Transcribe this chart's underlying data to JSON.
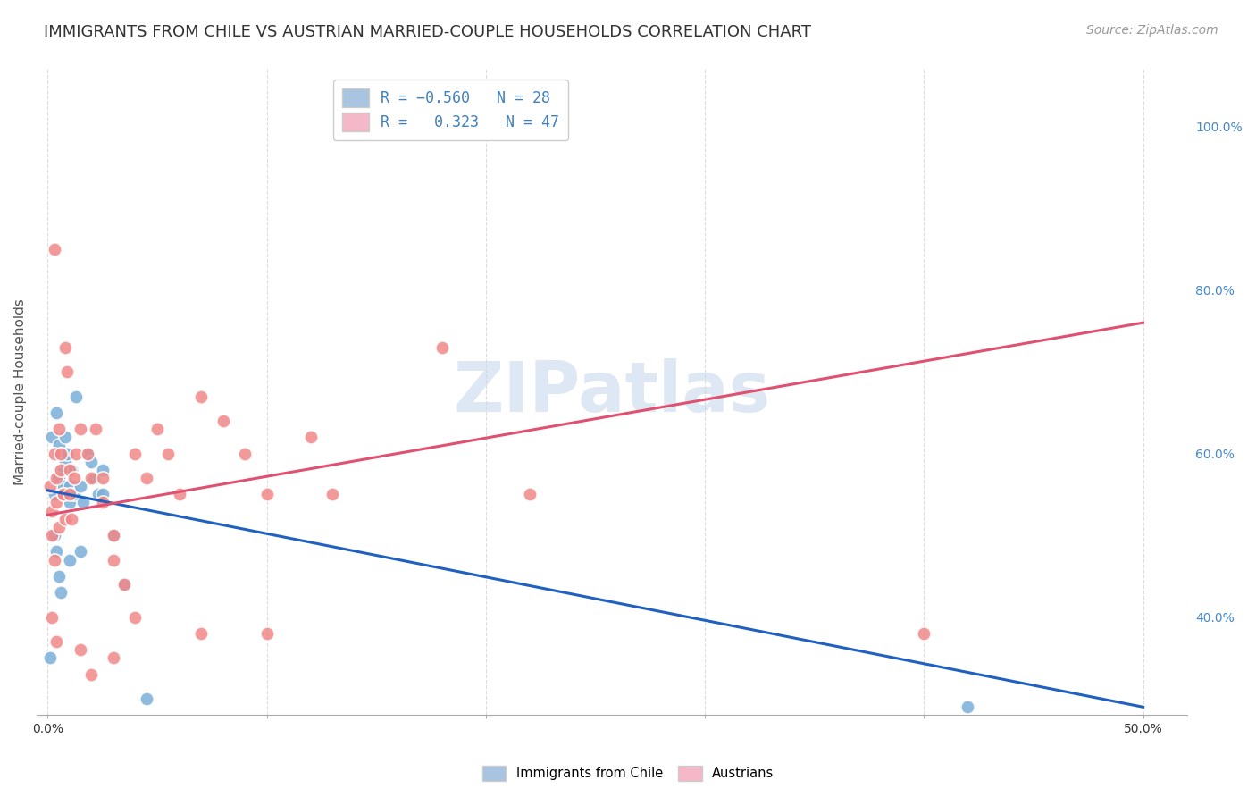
{
  "title": "IMMIGRANTS FROM CHILE VS AUSTRIAN MARRIED-COUPLE HOUSEHOLDS CORRELATION CHART",
  "source": "Source: ZipAtlas.com",
  "ylabel": "Married-couple Households",
  "xlim": [
    -0.5,
    52
  ],
  "ylim": [
    28,
    107
  ],
  "x_ticks": [
    0,
    10,
    20,
    30,
    40,
    50
  ],
  "x_tick_labels": [
    "0.0%",
    "",
    "",
    "",
    "",
    "50.0%"
  ],
  "y_ticks_right": [
    40,
    60,
    80,
    100
  ],
  "y_tick_labels_right": [
    "40.0%",
    "60.0%",
    "80.0%",
    "100.0%"
  ],
  "chile_color": "#7ab0d8",
  "austrian_color": "#f08888",
  "chile_scatter": [
    [
      0.2,
      62
    ],
    [
      0.3,
      55
    ],
    [
      0.4,
      65
    ],
    [
      0.5,
      61
    ],
    [
      0.5,
      57
    ],
    [
      0.6,
      58
    ],
    [
      0.6,
      60
    ],
    [
      0.7,
      58
    ],
    [
      0.7,
      56
    ],
    [
      0.8,
      62
    ],
    [
      0.8,
      59
    ],
    [
      0.9,
      60
    ],
    [
      1.0,
      56
    ],
    [
      1.0,
      54
    ],
    [
      1.1,
      58
    ],
    [
      1.2,
      55
    ],
    [
      1.3,
      67
    ],
    [
      1.5,
      56
    ],
    [
      1.6,
      54
    ],
    [
      1.8,
      60
    ],
    [
      2.0,
      59
    ],
    [
      2.1,
      57
    ],
    [
      2.3,
      55
    ],
    [
      2.5,
      58
    ],
    [
      2.5,
      55
    ],
    [
      3.0,
      50
    ],
    [
      3.5,
      44
    ],
    [
      0.3,
      50
    ],
    [
      0.4,
      48
    ],
    [
      0.5,
      45
    ],
    [
      0.6,
      43
    ],
    [
      0.1,
      35
    ],
    [
      1.0,
      47
    ],
    [
      1.5,
      48
    ],
    [
      4.5,
      30
    ],
    [
      42.0,
      29
    ]
  ],
  "austrian_scatter": [
    [
      0.1,
      56
    ],
    [
      0.2,
      53
    ],
    [
      0.2,
      50
    ],
    [
      0.3,
      47
    ],
    [
      0.3,
      60
    ],
    [
      0.4,
      57
    ],
    [
      0.4,
      54
    ],
    [
      0.5,
      51
    ],
    [
      0.5,
      63
    ],
    [
      0.6,
      60
    ],
    [
      0.6,
      58
    ],
    [
      0.7,
      55
    ],
    [
      0.7,
      55
    ],
    [
      0.8,
      52
    ],
    [
      0.8,
      73
    ],
    [
      0.9,
      70
    ],
    [
      1.0,
      58
    ],
    [
      1.0,
      55
    ],
    [
      1.1,
      52
    ],
    [
      1.2,
      57
    ],
    [
      1.3,
      60
    ],
    [
      1.5,
      63
    ],
    [
      1.8,
      60
    ],
    [
      2.0,
      57
    ],
    [
      2.2,
      63
    ],
    [
      2.5,
      57
    ],
    [
      2.5,
      54
    ],
    [
      3.0,
      50
    ],
    [
      3.0,
      47
    ],
    [
      3.5,
      44
    ],
    [
      4.0,
      60
    ],
    [
      4.5,
      57
    ],
    [
      5.0,
      63
    ],
    [
      5.5,
      60
    ],
    [
      6.0,
      55
    ],
    [
      7.0,
      67
    ],
    [
      8.0,
      64
    ],
    [
      9.0,
      60
    ],
    [
      10.0,
      55
    ],
    [
      13.0,
      55
    ],
    [
      18.0,
      73
    ],
    [
      0.2,
      40
    ],
    [
      0.4,
      37
    ],
    [
      4.0,
      40
    ],
    [
      7.0,
      38
    ],
    [
      10.0,
      38
    ],
    [
      0.3,
      85
    ],
    [
      3.0,
      35
    ],
    [
      2.0,
      33
    ],
    [
      1.5,
      36
    ],
    [
      40.0,
      38
    ],
    [
      22.0,
      55
    ],
    [
      12.0,
      62
    ]
  ],
  "chile_line": {
    "x0": 0,
    "y0": 55.5,
    "x1": 50,
    "y1": 29
  },
  "austrian_line": {
    "x0": 0,
    "y0": 52.5,
    "x1": 50,
    "y1": 76
  },
  "watermark_text": "ZIPatlas",
  "background_color": "#ffffff",
  "grid_color": "#dddddd",
  "title_fontsize": 13,
  "source_fontsize": 10,
  "legend_fontsize": 12,
  "axis_label_fontsize": 11
}
